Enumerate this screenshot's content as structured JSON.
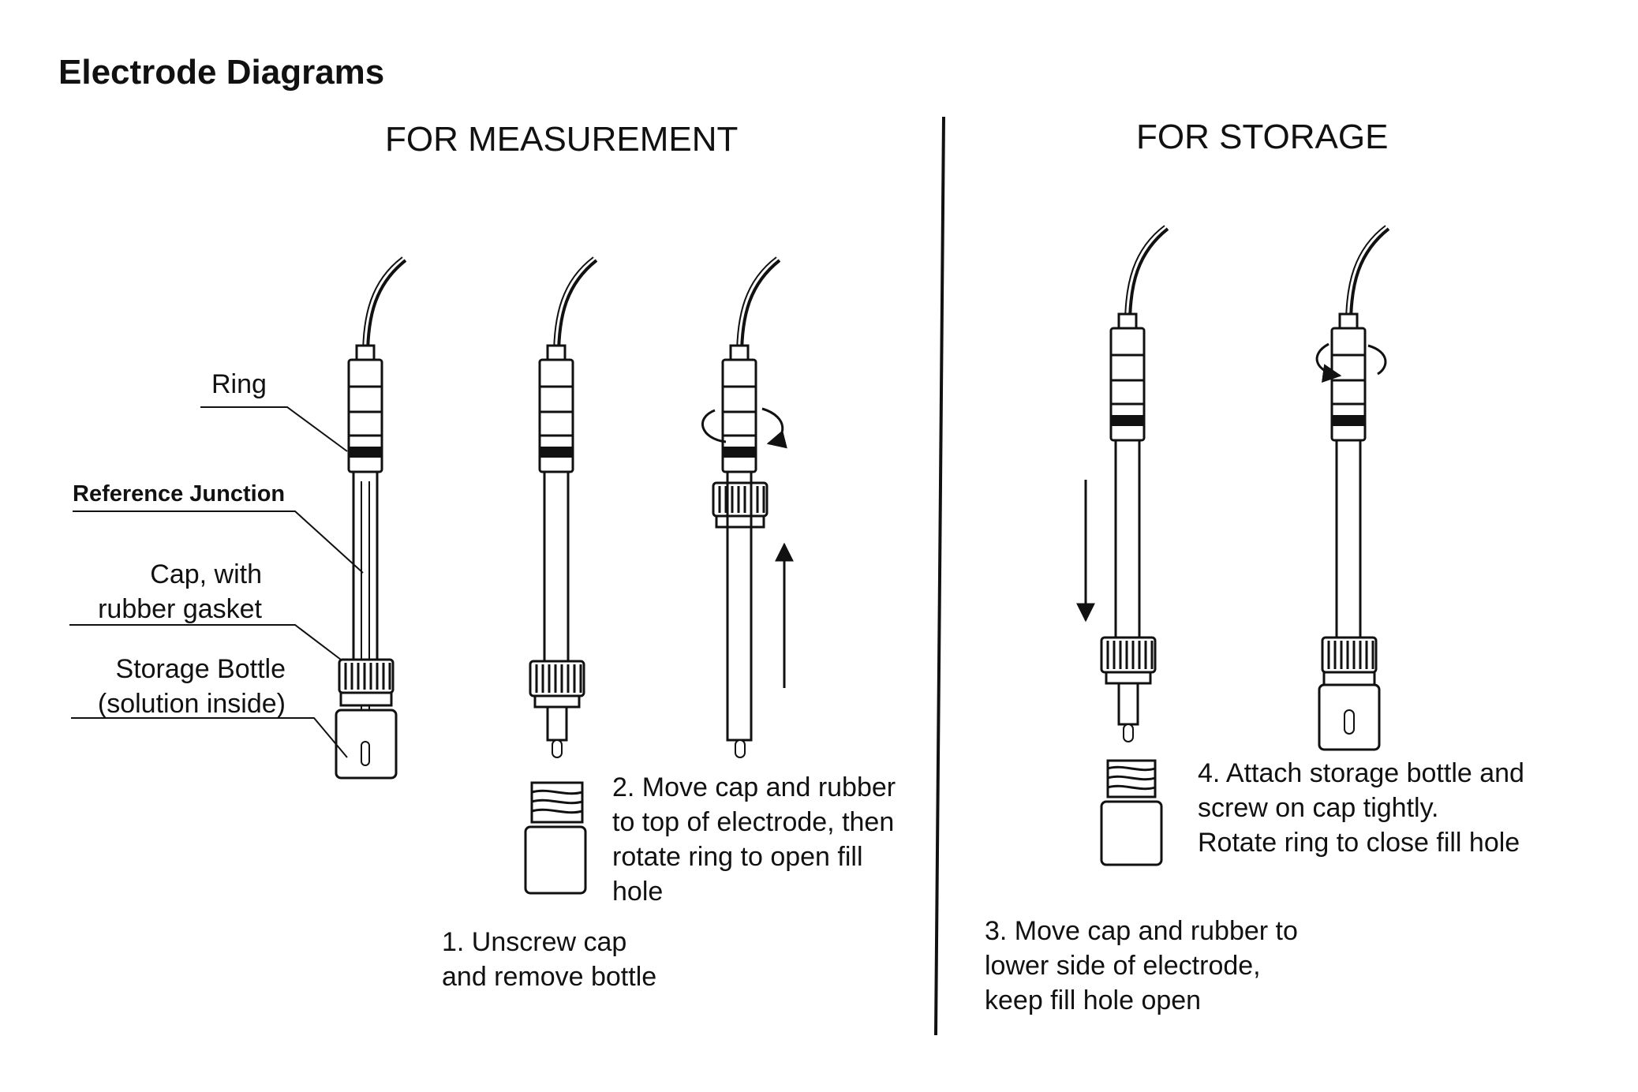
{
  "title": "Electrode Diagrams",
  "sections": {
    "measurement": "FOR MEASUREMENT",
    "storage": "FOR STORAGE"
  },
  "part_labels": {
    "ring": "Ring",
    "reference_junction": "Reference Junction",
    "cap": "Cap, with\nrubber gasket",
    "storage_bottle": "Storage Bottle\n(solution inside)"
  },
  "steps": {
    "step1": "1. Unscrew cap\nand remove bottle",
    "step2": "2. Move cap and rubber\nto top of electrode, then\nrotate ring to open fill\nhole",
    "step3": "3. Move cap and rubber to\nlower side of electrode,\nkeep fill hole open",
    "step4": "4. Attach storage bottle and\nscrew on cap tightly.\nRotate ring to close fill hole"
  }
}
